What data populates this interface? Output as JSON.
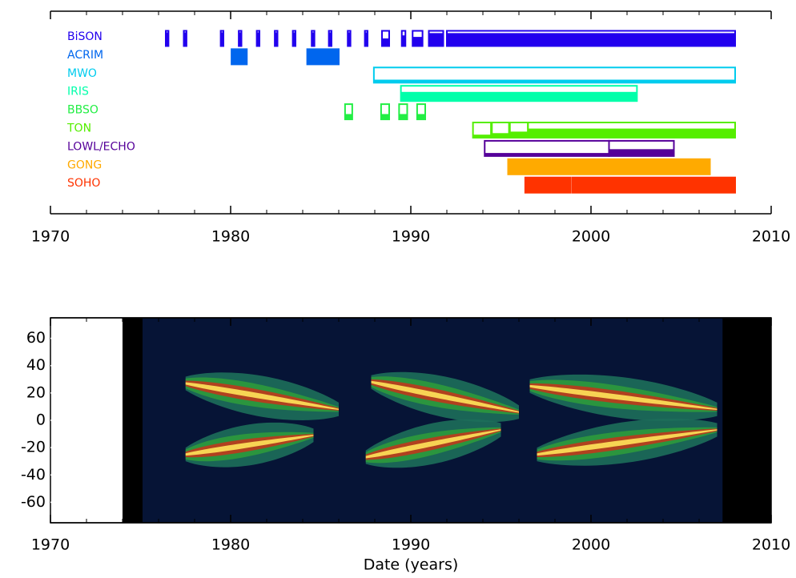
{
  "chart_data": [
    {
      "type": "timeline",
      "xlim": [
        1970,
        2010
      ],
      "xticks": [
        1970,
        1980,
        1990,
        2000,
        2010
      ],
      "xminorticks": [
        1972,
        1974,
        1976,
        1978,
        1982,
        1984,
        1986,
        1988,
        1992,
        1994,
        1996,
        1998,
        2002,
        2004,
        2006,
        2008
      ],
      "series": [
        {
          "name": "BiSON",
          "color": "#2200ee",
          "intervals": [
            {
              "start": 1976.4,
              "end": 1976.55,
              "duty": 0.9
            },
            {
              "start": 1977.4,
              "end": 1977.55,
              "duty": 0.9
            },
            {
              "start": 1979.45,
              "end": 1979.6,
              "duty": 0.9
            },
            {
              "start": 1980.45,
              "end": 1980.6,
              "duty": 0.9
            },
            {
              "start": 1981.45,
              "end": 1981.6,
              "duty": 0.9
            },
            {
              "start": 1982.45,
              "end": 1982.6,
              "duty": 0.9
            },
            {
              "start": 1983.45,
              "end": 1983.6,
              "duty": 0.9
            },
            {
              "start": 1984.5,
              "end": 1984.65,
              "duty": 0.9
            },
            {
              "start": 1985.45,
              "end": 1985.6,
              "duty": 0.9
            },
            {
              "start": 1986.5,
              "end": 1986.65,
              "duty": 0.9
            },
            {
              "start": 1987.45,
              "end": 1987.6,
              "duty": 0.9
            },
            {
              "start": 1988.4,
              "end": 1988.8,
              "duty": 0.5
            },
            {
              "start": 1989.5,
              "end": 1989.7,
              "duty": 0.7
            },
            {
              "start": 1990.1,
              "end": 1990.65,
              "duty": 0.6
            },
            {
              "start": 1991.0,
              "end": 1991.8,
              "duty": 0.85
            },
            {
              "start": 1992.0,
              "end": 2008.0,
              "duty": 0.85
            }
          ]
        },
        {
          "name": "ACRIM",
          "color": "#0066ee",
          "intervals": [
            {
              "start": 1980.05,
              "end": 1980.9,
              "duty": 1
            },
            {
              "start": 1984.25,
              "end": 1986.0,
              "duty": 1
            }
          ]
        },
        {
          "name": "MWO",
          "color": "#00ccee",
          "intervals": [
            {
              "start": 1987.95,
              "end": 2008.0,
              "duty": 0.2
            }
          ]
        },
        {
          "name": "IRIS",
          "color": "#00ffaa",
          "intervals": [
            {
              "start": 1989.45,
              "end": 2002.55,
              "duty": 0.6
            }
          ]
        },
        {
          "name": "BBSO",
          "color": "#22ee44",
          "intervals": [
            {
              "start": 1986.35,
              "end": 1986.75,
              "duty": 0.35
            },
            {
              "start": 1988.35,
              "end": 1988.8,
              "duty": 0.35
            },
            {
              "start": 1989.35,
              "end": 1989.8,
              "duty": 0.35
            },
            {
              "start": 1990.35,
              "end": 1990.8,
              "duty": 0.35
            }
          ]
        },
        {
          "name": "TON",
          "color": "#55ee00",
          "intervals": [
            {
              "start": 1993.45,
              "end": 1994.45,
              "duty": 0.2
            },
            {
              "start": 1994.5,
              "end": 1995.45,
              "duty": 0.3
            },
            {
              "start": 1995.5,
              "end": 1996.5,
              "duty": 0.4
            },
            {
              "start": 1996.5,
              "end": 2008.0,
              "duty": 0.6
            }
          ]
        },
        {
          "name": "LOWL/ECHO",
          "color": "#550099",
          "intervals": [
            {
              "start": 1994.1,
              "end": 2001.0,
              "duty": 0.2
            },
            {
              "start": 2001.0,
              "end": 2004.6,
              "duty": 0.45
            }
          ]
        },
        {
          "name": "GONG",
          "color": "#ffaa00",
          "intervals": [
            {
              "start": 1995.4,
              "end": 2006.6,
              "duty": 1
            }
          ]
        },
        {
          "name": "SOHO",
          "color": "#ff3300",
          "intervals": [
            {
              "start": 1996.35,
              "end": 1998.85,
              "duty": 1
            },
            {
              "start": 1998.95,
              "end": 2008.0,
              "duty": 1
            }
          ]
        }
      ]
    },
    {
      "type": "butterfly",
      "xlabel": "Date (years)",
      "xlim": [
        1970,
        2010
      ],
      "xticks": [
        1970,
        1980,
        1990,
        2000,
        2010
      ],
      "xminorticks": [
        1972,
        1974,
        1976,
        1978,
        1982,
        1984,
        1986,
        1988,
        1992,
        1994,
        1996,
        1998,
        2002,
        2004,
        2006,
        2008
      ],
      "ylim": [
        -75,
        75
      ],
      "yticks": [
        -60,
        -40,
        -20,
        0,
        20,
        40,
        60
      ],
      "coverage": [
        1974,
        2007.3
      ],
      "wings": [
        {
          "x": [
            1977.5,
            1986.0
          ],
          "lat": [
            27,
            8
          ]
        },
        {
          "x": [
            1977.5,
            1984.6
          ],
          "lat": [
            -25,
            -11
          ]
        },
        {
          "x": [
            1987.8,
            1996.0
          ],
          "lat": [
            28,
            6
          ]
        },
        {
          "x": [
            1987.5,
            1995.0
          ],
          "lat": [
            -27,
            -7
          ]
        },
        {
          "x": [
            1996.6,
            2007.0
          ],
          "lat": [
            25,
            8
          ]
        },
        {
          "x": [
            1997.0,
            2007.0
          ],
          "lat": [
            -25,
            -7
          ]
        }
      ]
    }
  ]
}
